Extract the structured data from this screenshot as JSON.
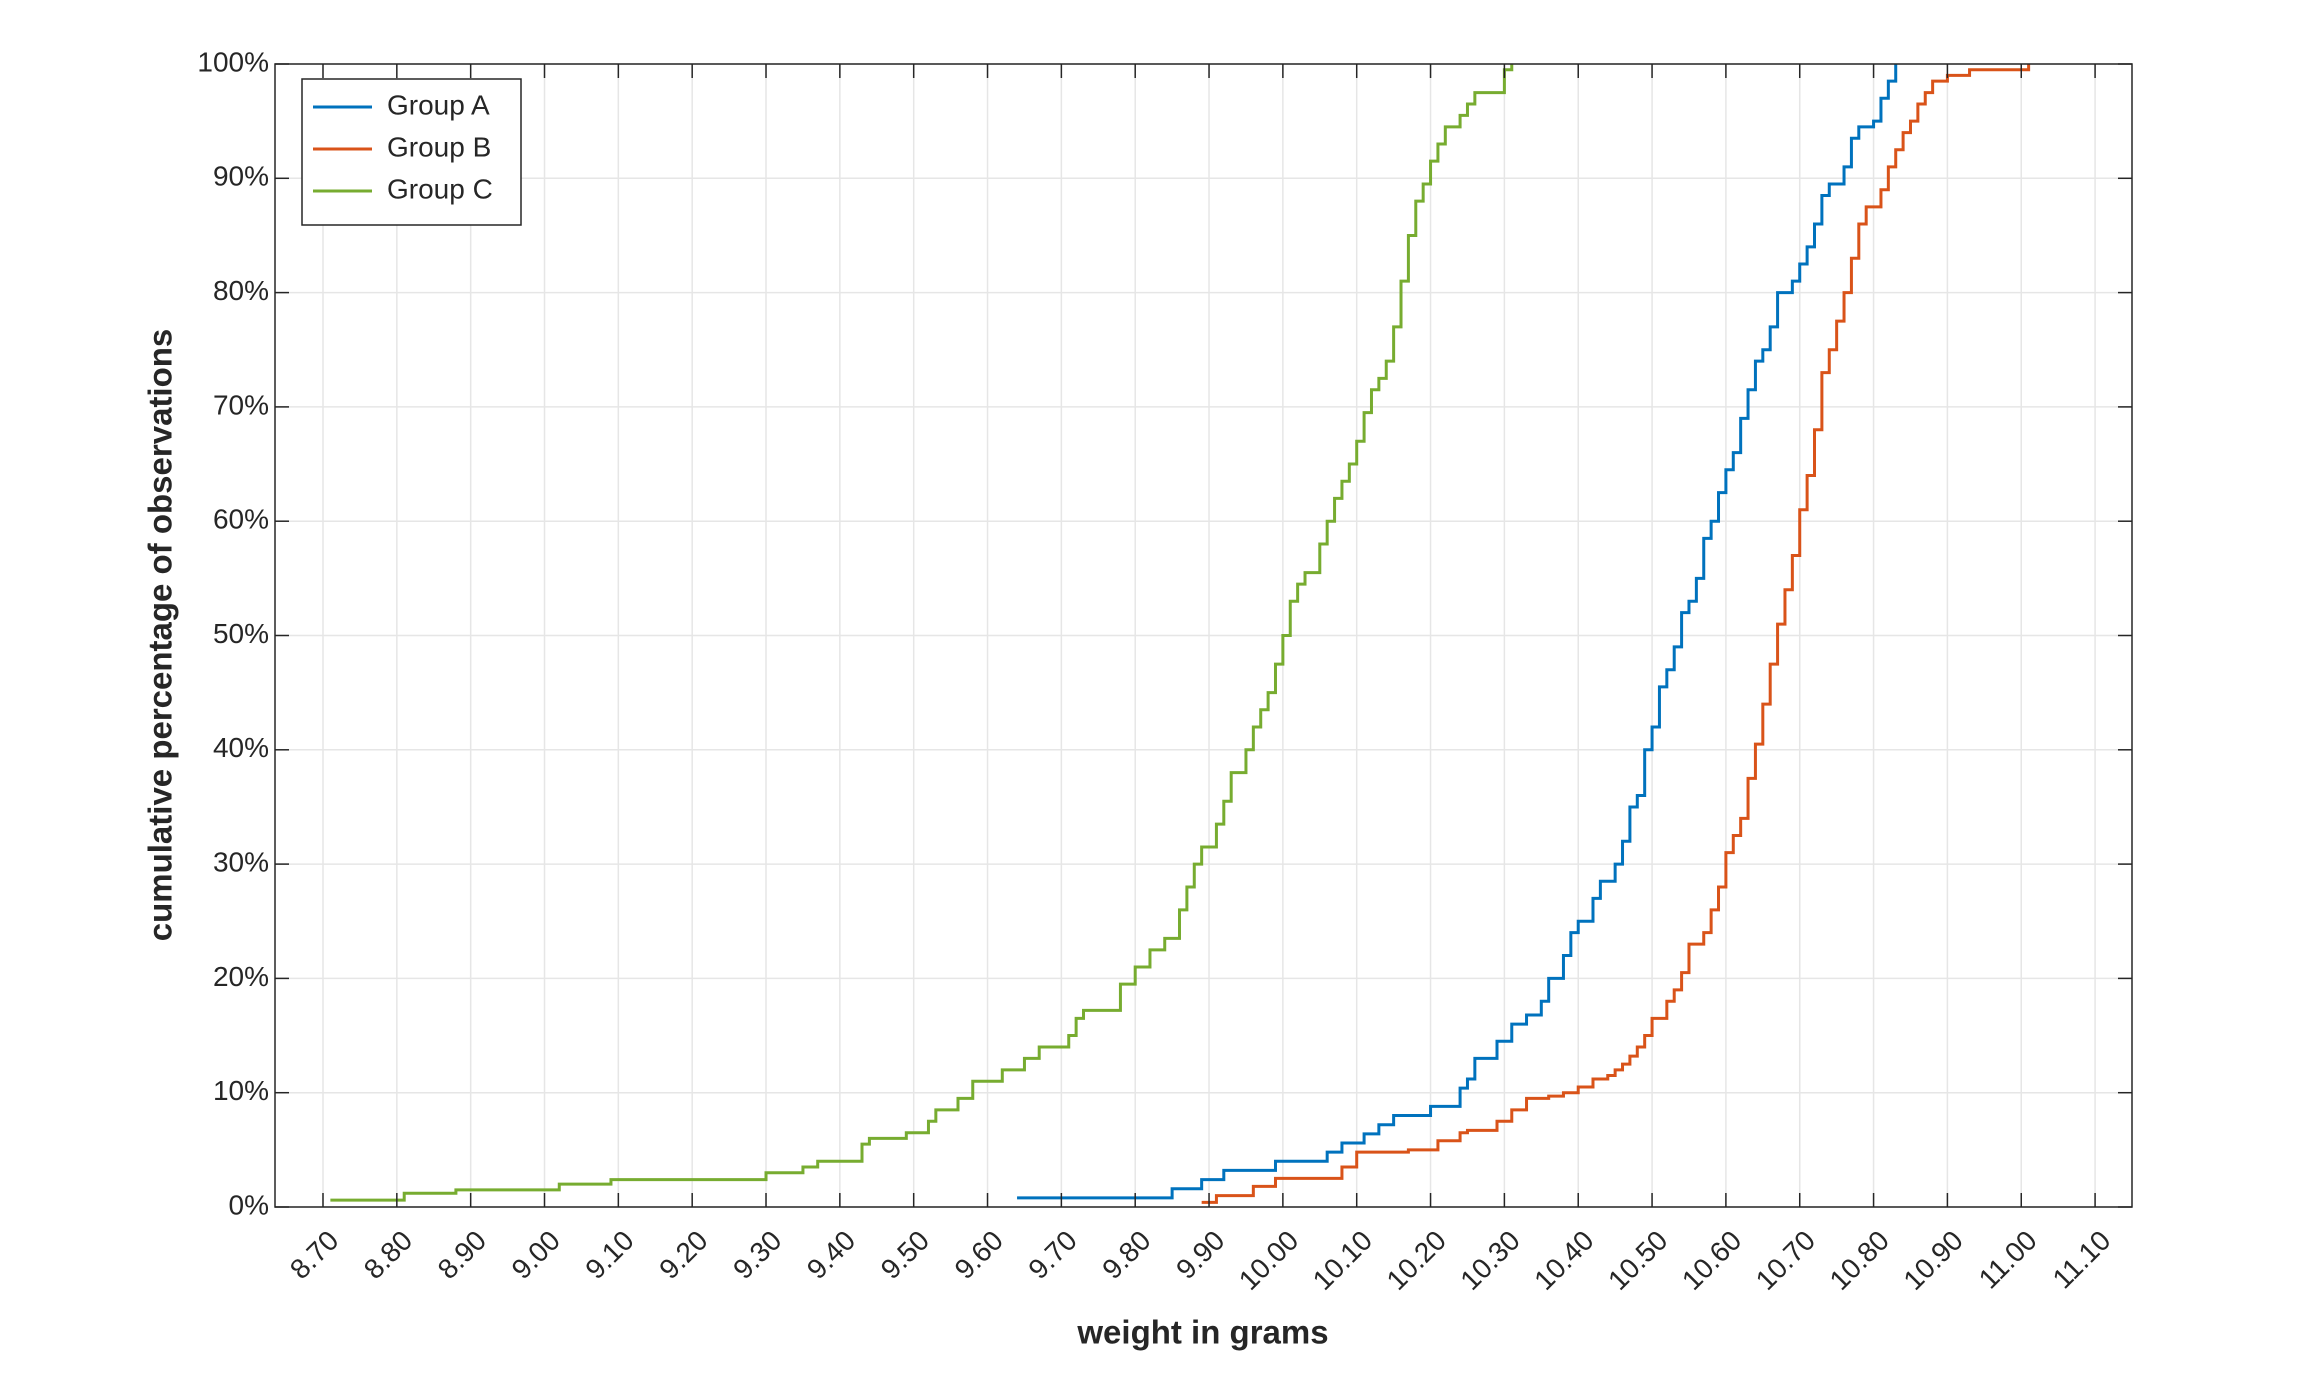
{
  "chart_data": {
    "type": "stairs",
    "xlabel": "weight in grams",
    "ylabel": "cumulative percentage of observations",
    "xlim": [
      8.635,
      11.15
    ],
    "ylim": [
      0,
      100
    ],
    "xticks": [
      {
        "value": 8.7,
        "label": "8.70"
      },
      {
        "value": 8.8,
        "label": "8.80"
      },
      {
        "value": 8.9,
        "label": "8.90"
      },
      {
        "value": 9.0,
        "label": "9.00"
      },
      {
        "value": 9.1,
        "label": "9.10"
      },
      {
        "value": 9.2,
        "label": "9.20"
      },
      {
        "value": 9.3,
        "label": "9.30"
      },
      {
        "value": 9.4,
        "label": "9.40"
      },
      {
        "value": 9.5,
        "label": "9.50"
      },
      {
        "value": 9.6,
        "label": "9.60"
      },
      {
        "value": 9.7,
        "label": "9.70"
      },
      {
        "value": 9.8,
        "label": "9.80"
      },
      {
        "value": 9.9,
        "label": "9.90"
      },
      {
        "value": 10.0,
        "label": "10.00"
      },
      {
        "value": 10.1,
        "label": "10.10"
      },
      {
        "value": 10.2,
        "label": "10.20"
      },
      {
        "value": 10.3,
        "label": "10.30"
      },
      {
        "value": 10.4,
        "label": "10.40"
      },
      {
        "value": 10.5,
        "label": "10.50"
      },
      {
        "value": 10.6,
        "label": "10.60"
      },
      {
        "value": 10.7,
        "label": "10.70"
      },
      {
        "value": 10.8,
        "label": "10.80"
      },
      {
        "value": 10.9,
        "label": "10.90"
      },
      {
        "value": 11.0,
        "label": "11.00"
      },
      {
        "value": 11.1,
        "label": "11.10"
      }
    ],
    "yticks": [
      {
        "value": 0,
        "label": "0%"
      },
      {
        "value": 10,
        "label": "10%"
      },
      {
        "value": 20,
        "label": "20%"
      },
      {
        "value": 30,
        "label": "30%"
      },
      {
        "value": 40,
        "label": "40%"
      },
      {
        "value": 50,
        "label": "50%"
      },
      {
        "value": 60,
        "label": "60%"
      },
      {
        "value": 70,
        "label": "70%"
      },
      {
        "value": 80,
        "label": "80%"
      },
      {
        "value": 90,
        "label": "90%"
      },
      {
        "value": 100,
        "label": "100%"
      }
    ],
    "grid": true,
    "legend": "top-left",
    "series": [
      {
        "name": "Group A",
        "color": "#0072BD",
        "x": [
          9.64,
          9.85,
          9.89,
          9.92,
          9.99,
          10.06,
          10.08,
          10.11,
          10.13,
          10.15,
          10.2,
          10.24,
          10.25,
          10.26,
          10.29,
          10.31,
          10.33,
          10.35,
          10.36,
          10.38,
          10.39,
          10.4,
          10.42,
          10.43,
          10.45,
          10.46,
          10.47,
          10.48,
          10.49,
          10.5,
          10.51,
          10.52,
          10.53,
          10.54,
          10.55,
          10.56,
          10.57,
          10.58,
          10.59,
          10.6,
          10.61,
          10.62,
          10.63,
          10.64,
          10.65,
          10.66,
          10.67,
          10.69,
          10.7,
          10.71,
          10.72,
          10.73,
          10.74,
          10.76,
          10.77,
          10.78,
          10.8,
          10.81,
          10.82,
          10.83
        ],
        "values": [
          0.8,
          1.6,
          2.4,
          3.2,
          4.0,
          4.8,
          5.6,
          6.4,
          7.2,
          8.0,
          8.8,
          10.4,
          11.2,
          13.0,
          14.5,
          16.0,
          16.8,
          18.0,
          20.0,
          22.0,
          24.0,
          25.0,
          27.0,
          28.5,
          30.0,
          32.0,
          35.0,
          36.0,
          40.0,
          42.0,
          45.5,
          47.0,
          49.0,
          52.0,
          53.0,
          55.0,
          58.5,
          60.0,
          62.5,
          64.5,
          66.0,
          69.0,
          71.5,
          74.0,
          75.0,
          77.0,
          80.0,
          81.0,
          82.5,
          84.0,
          86.0,
          88.5,
          89.5,
          91.0,
          93.5,
          94.5,
          95.0,
          97.0,
          98.5,
          100
        ]
      },
      {
        "name": "Group B",
        "color": "#D95319",
        "x": [
          9.89,
          9.91,
          9.96,
          9.99,
          10.08,
          10.1,
          10.17,
          10.21,
          10.24,
          10.25,
          10.29,
          10.31,
          10.33,
          10.36,
          10.38,
          10.4,
          10.42,
          10.44,
          10.45,
          10.46,
          10.47,
          10.48,
          10.49,
          10.5,
          10.52,
          10.53,
          10.54,
          10.55,
          10.57,
          10.58,
          10.59,
          10.6,
          10.61,
          10.62,
          10.63,
          10.64,
          10.65,
          10.66,
          10.67,
          10.68,
          10.69,
          10.7,
          10.71,
          10.72,
          10.73,
          10.74,
          10.75,
          10.76,
          10.77,
          10.78,
          10.79,
          10.81,
          10.82,
          10.83,
          10.84,
          10.85,
          10.86,
          10.87,
          10.88,
          10.9,
          10.93,
          11.01
        ],
        "values": [
          0.4,
          1.0,
          1.8,
          2.5,
          3.5,
          4.8,
          5.0,
          5.8,
          6.5,
          6.7,
          7.5,
          8.5,
          9.5,
          9.7,
          10.0,
          10.5,
          11.2,
          11.5,
          12.0,
          12.5,
          13.2,
          14.0,
          15.0,
          16.5,
          18.0,
          19.0,
          20.5,
          23.0,
          24.0,
          26.0,
          28.0,
          31.0,
          32.5,
          34.0,
          37.5,
          40.5,
          44.0,
          47.5,
          51.0,
          54.0,
          57.0,
          61.0,
          64.0,
          68.0,
          73.0,
          75.0,
          77.5,
          80.0,
          83.0,
          86.0,
          87.5,
          89.0,
          91.0,
          92.5,
          94.0,
          95.0,
          96.5,
          97.5,
          98.5,
          99.0,
          99.5,
          100
        ]
      },
      {
        "name": "Group C",
        "color": "#77AC30",
        "x": [
          8.71,
          8.81,
          8.88,
          9.02,
          9.09,
          9.3,
          9.35,
          9.37,
          9.43,
          9.44,
          9.49,
          9.52,
          9.53,
          9.56,
          9.58,
          9.62,
          9.65,
          9.67,
          9.71,
          9.72,
          9.73,
          9.78,
          9.8,
          9.82,
          9.84,
          9.86,
          9.87,
          9.88,
          9.89,
          9.91,
          9.92,
          9.93,
          9.95,
          9.96,
          9.97,
          9.98,
          9.99,
          10.0,
          10.01,
          10.02,
          10.03,
          10.05,
          10.06,
          10.07,
          10.08,
          10.09,
          10.1,
          10.11,
          10.12,
          10.13,
          10.14,
          10.15,
          10.16,
          10.17,
          10.18,
          10.19,
          10.2,
          10.21,
          10.22,
          10.24,
          10.25,
          10.26,
          10.3,
          10.31
        ],
        "values": [
          0.6,
          1.2,
          1.5,
          2.0,
          2.4,
          3.0,
          3.5,
          4.0,
          5.5,
          6.0,
          6.5,
          7.5,
          8.5,
          9.5,
          11.0,
          12.0,
          13.0,
          14.0,
          15.0,
          16.5,
          17.2,
          19.5,
          21.0,
          22.5,
          23.5,
          26.0,
          28.0,
          30.0,
          31.5,
          33.5,
          35.5,
          38.0,
          40.0,
          42.0,
          43.5,
          45.0,
          47.5,
          50.0,
          53.0,
          54.5,
          55.5,
          58.0,
          60.0,
          62.0,
          63.5,
          65.0,
          67.0,
          69.5,
          71.5,
          72.5,
          74.0,
          77.0,
          81.0,
          85.0,
          88.0,
          89.5,
          91.5,
          93.0,
          94.5,
          95.5,
          96.5,
          97.5,
          99.5,
          100
        ]
      }
    ]
  }
}
